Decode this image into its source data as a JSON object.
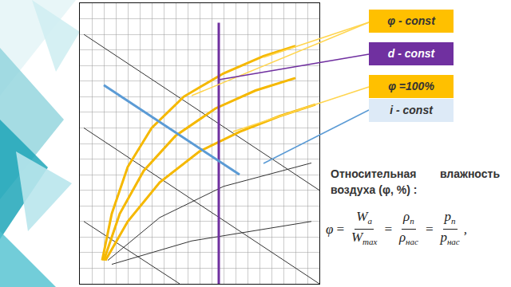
{
  "chart_data": {
    "type": "line",
    "xlim": [
      0,
      300
    ],
    "ylim": [
      0,
      360
    ],
    "xticks": [
      0,
      15,
      30,
      45,
      60,
      75,
      90,
      105,
      120,
      135,
      150,
      165,
      180,
      195,
      210,
      225,
      240,
      255,
      270,
      285,
      300
    ],
    "yticks": [
      0,
      20,
      40,
      60,
      80,
      100,
      120,
      140,
      160,
      180,
      200,
      220,
      240,
      260,
      280,
      300,
      320,
      340,
      360
    ],
    "grid": true,
    "tick_labels": false,
    "series": [
      {
        "color": "#333333",
        "line_style": "solid",
        "x": [
          5,
          300
        ],
        "values": [
          320,
          120
        ]
      },
      {
        "color": "#333333",
        "line_style": "solid",
        "x": [
          5,
          300
        ],
        "values": [
          200,
          0
        ]
      },
      {
        "color": "#333333",
        "line_style": "solid",
        "x": [
          5,
          125
        ],
        "values": [
          80,
          0
        ]
      },
      {
        "color": "#333333",
        "line_style": "solid",
        "x": [
          35,
          100,
          180,
          290
        ],
        "values": [
          30,
          85,
          125,
          155
        ]
      },
      {
        "color": "#333333",
        "line_style": "solid",
        "x": [
          40,
          140,
          290
        ],
        "values": [
          25,
          55,
          80
        ]
      },
      {
        "color": "#f5b800",
        "line_style": "thick",
        "x": [
          28,
          40,
          60,
          90,
          130,
          180,
          230,
          270
        ],
        "values": [
          30,
          90,
          150,
          200,
          240,
          270,
          292,
          305
        ]
      },
      {
        "color": "#f5b800",
        "line_style": "thick",
        "x": [
          30,
          50,
          80,
          120,
          170,
          220,
          270
        ],
        "values": [
          30,
          90,
          145,
          190,
          225,
          248,
          264
        ]
      },
      {
        "color": "#f5b800",
        "line_style": "thick",
        "x": [
          32,
          60,
          100,
          150,
          200,
          250,
          295
        ],
        "values": [
          30,
          80,
          130,
          170,
          195,
          215,
          230
        ]
      },
      {
        "color": "#7030a0",
        "line_style": "thick",
        "x": [
          174,
          174
        ],
        "values": [
          0,
          335
        ]
      },
      {
        "color": "#5b9bd5",
        "line_style": "thick",
        "x": [
          30,
          200
        ],
        "values": [
          255,
          140
        ]
      }
    ]
  },
  "labels": [
    {
      "text": "φ - const",
      "color": "#ffc000",
      "text_color": "#333333"
    },
    {
      "text": "d - const",
      "color": "#7030a0",
      "text_color": "#ffffff"
    },
    {
      "text": "φ =100%",
      "color": "#ffc000",
      "text_color": "#333333"
    },
    {
      "text": "i - const",
      "color": "#ddeaf7",
      "text_color": "#333333"
    }
  ],
  "caption": "Относительная влажность воздуха (φ, %) :",
  "formula": {
    "lhs": "φ",
    "fractions": [
      {
        "num": "W",
        "num_sub": "a",
        "den": "W",
        "den_sub": "max"
      },
      {
        "num": "ρ",
        "num_sub": "n",
        "den": "ρ",
        "den_sub": "нас"
      },
      {
        "num": "p",
        "num_sub": "n",
        "den": "p",
        "den_sub": "нас"
      }
    ],
    "end": ","
  }
}
